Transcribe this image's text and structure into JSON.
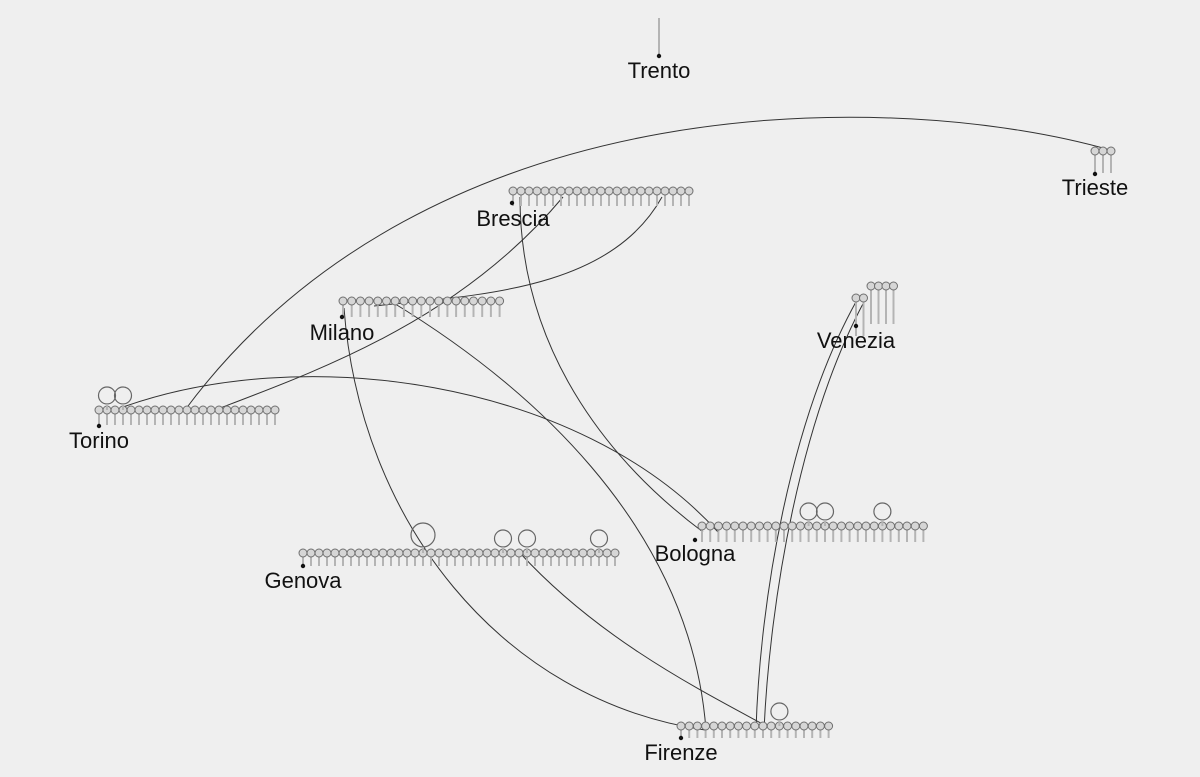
{
  "cities": [
    {
      "id": "trento",
      "label": "Trento",
      "dots": 0,
      "stemOnly": true
    },
    {
      "id": "trieste",
      "label": "Trieste",
      "dots": 3
    },
    {
      "id": "brescia",
      "label": "Brescia",
      "dots": 23
    },
    {
      "id": "milano",
      "label": "Milano",
      "dots": 19
    },
    {
      "id": "venezia",
      "label": "Venezia",
      "dots": 6
    },
    {
      "id": "torino",
      "label": "Torino",
      "dots": 23
    },
    {
      "id": "bologna",
      "label": "Bologna",
      "dots": 28
    },
    {
      "id": "genova",
      "label": "Genova",
      "dots": 40
    },
    {
      "id": "firenze",
      "label": "Firenze",
      "dots": 19
    }
  ],
  "big_markers": [
    {
      "city": "torino",
      "index": 3
    },
    {
      "city": "torino",
      "index": 1
    },
    {
      "city": "genova",
      "index": 15
    },
    {
      "city": "genova",
      "index": 25
    },
    {
      "city": "genova",
      "index": 28
    },
    {
      "city": "genova",
      "index": 37
    },
    {
      "city": "bologna",
      "index": 13
    },
    {
      "city": "bologna",
      "index": 15
    },
    {
      "city": "bologna",
      "index": 22
    },
    {
      "city": "firenze",
      "index": 12
    }
  ],
  "links": [
    [
      "trieste",
      "torino"
    ],
    [
      "torino",
      "bologna"
    ],
    [
      "torino",
      "brescia"
    ],
    [
      "milano",
      "brescia"
    ],
    [
      "milano",
      "firenze"
    ],
    [
      "milano",
      "firenze"
    ],
    [
      "brescia",
      "bologna"
    ],
    [
      "genova",
      "firenze"
    ],
    [
      "venezia",
      "firenze"
    ],
    [
      "venezia",
      "firenze"
    ]
  ]
}
